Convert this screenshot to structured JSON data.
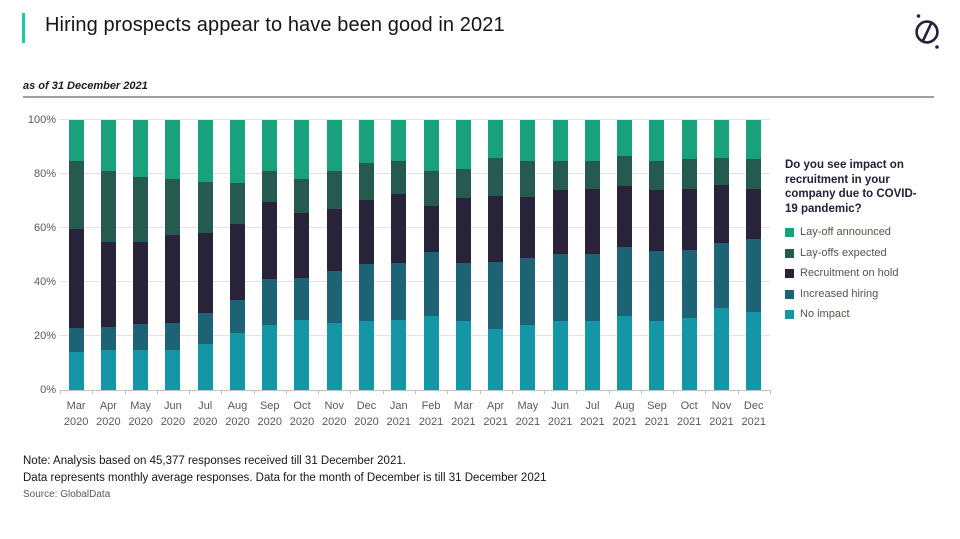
{
  "header": {
    "title": "Hiring prospects appear to have been good in 2021",
    "as_of": "as of 31 December 2021",
    "logo_icon": "globaldata-circle-slash-mark",
    "accent_color": "#15d09c"
  },
  "legend": {
    "question": "Do you see impact on recruitment in your company due to COVID-19 pandemic?",
    "items": [
      {
        "label": "Lay-off announced",
        "color": "#18a17b"
      },
      {
        "label": "Lay-offs expected",
        "color": "#255a4e"
      },
      {
        "label": "Recruitment on hold",
        "color": "#292339"
      },
      {
        "label": "Increased hiring",
        "color": "#1d6275"
      },
      {
        "label": "No impact",
        "color": "#1496a6"
      }
    ]
  },
  "chart_data": {
    "type": "bar",
    "stacked": true,
    "unit": "percent of responses",
    "title": "",
    "xlabel": "",
    "ylabel": "",
    "ylim": [
      0,
      100
    ],
    "y_ticks": [
      "0%",
      "20%",
      "40%",
      "60%",
      "80%",
      "100%"
    ],
    "grid": "horizontal",
    "legend_position": "right",
    "stack_order": "bottom_to_top",
    "categories": [
      [
        "Mar",
        "2020"
      ],
      [
        "Apr",
        "2020"
      ],
      [
        "May",
        "2020"
      ],
      [
        "Jun",
        "2020"
      ],
      [
        "Jul",
        "2020"
      ],
      [
        "Aug",
        "2020"
      ],
      [
        "Sep",
        "2020"
      ],
      [
        "Oct",
        "2020"
      ],
      [
        "Nov",
        "2020"
      ],
      [
        "Dec",
        "2020"
      ],
      [
        "Jan",
        "2021"
      ],
      [
        "Feb",
        "2021"
      ],
      [
        "Mar",
        "2021"
      ],
      [
        "Apr",
        "2021"
      ],
      [
        "May",
        "2021"
      ],
      [
        "Jun",
        "2021"
      ],
      [
        "Jul",
        "2021"
      ],
      [
        "Aug",
        "2021"
      ],
      [
        "Sep",
        "2021"
      ],
      [
        "Oct",
        "2021"
      ],
      [
        "Nov",
        "2021"
      ],
      [
        "Dec",
        "2021"
      ]
    ],
    "series": [
      {
        "name": "No impact",
        "color": "#1496a6",
        "values": [
          14,
          15,
          15,
          15,
          17,
          21,
          24,
          26,
          25,
          25.5,
          26,
          27.5,
          25.5,
          22.5,
          24,
          25.5,
          25.5,
          27.5,
          25.5,
          26.5,
          30.5,
          29
        ]
      },
      {
        "name": "Increased hiring",
        "color": "#1d6275",
        "values": [
          9,
          8.5,
          9.5,
          10,
          11.5,
          12.5,
          17,
          15.5,
          19,
          21,
          21,
          23.5,
          21.5,
          25,
          25,
          25,
          25,
          25.5,
          26,
          25.5,
          24,
          27
        ]
      },
      {
        "name": "Recruitment on hold",
        "color": "#292339",
        "values": [
          36.5,
          31.5,
          30.5,
          32.5,
          29.5,
          28,
          28.5,
          24,
          23,
          24,
          25.5,
          17,
          24,
          24.5,
          22.5,
          23.5,
          24,
          22.5,
          22.5,
          22.5,
          21.5,
          18.5
        ]
      },
      {
        "name": "Lay-offs expected",
        "color": "#255a4e",
        "values": [
          25.5,
          26,
          24,
          20.5,
          19,
          15,
          11.5,
          12.5,
          14,
          13.5,
          12.5,
          13,
          11,
          14,
          13.5,
          11,
          10.5,
          11,
          11,
          11,
          10,
          11
        ]
      },
      {
        "name": "Lay-off announced",
        "color": "#18a17b",
        "values": [
          15,
          19,
          21,
          22,
          23,
          23.5,
          19,
          22,
          19,
          16,
          15,
          19,
          18,
          14,
          15,
          15,
          15,
          13.5,
          15,
          14.5,
          14,
          14.5
        ]
      }
    ]
  },
  "footer": {
    "note_line1": "Note: Analysis based on 45,377 responses received till 31 December 2021.",
    "note_line2": "Data represents monthly average responses. Data for the month of December is till 31 December 2021",
    "source": "Source: GlobalData"
  }
}
